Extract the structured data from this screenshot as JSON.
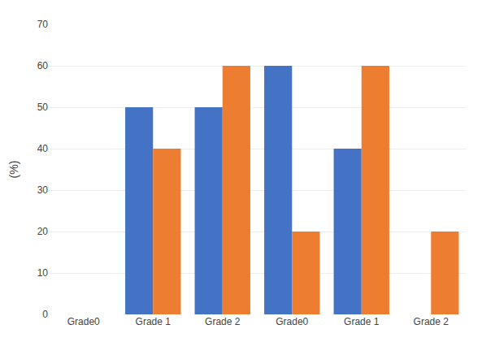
{
  "chart_data": {
    "type": "bar",
    "categories": [
      "Grade0",
      "Grade 1",
      "Grade 2",
      "Grade0",
      "Grade 1",
      "Grade 2"
    ],
    "series": [
      {
        "color": "#4472C4",
        "values": [
          0,
          50,
          50,
          60,
          40,
          0
        ]
      },
      {
        "color": "#ED7D31",
        "values": [
          0,
          40,
          60,
          20,
          60,
          20
        ]
      }
    ],
    "ylabel": "(%)",
    "ylim": [
      0,
      70
    ],
    "yticks": [
      0,
      10,
      20,
      30,
      40,
      50,
      60,
      70
    ],
    "grid": true
  }
}
